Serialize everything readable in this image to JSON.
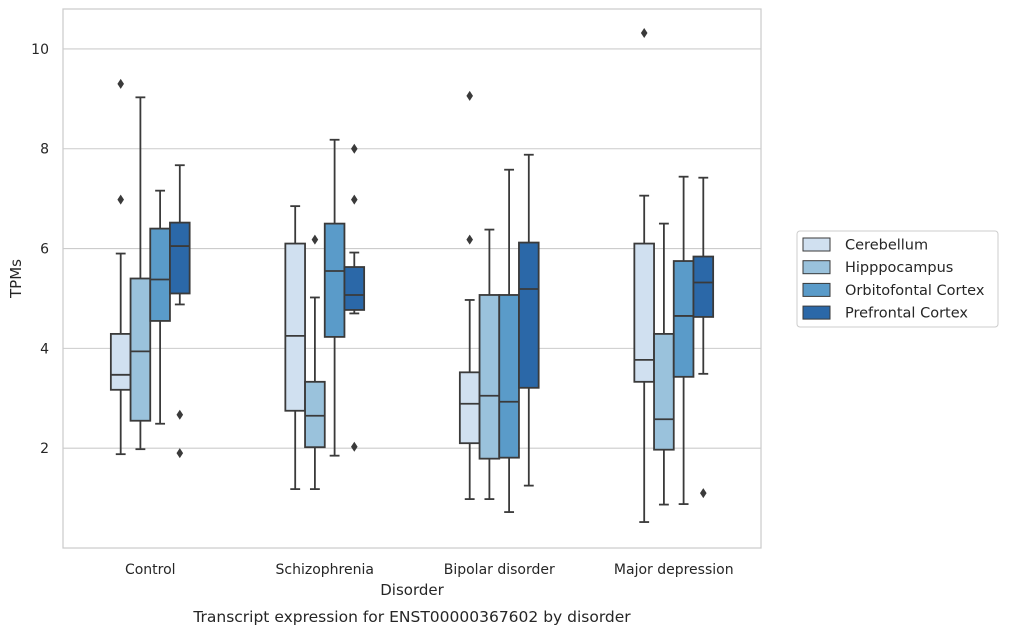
{
  "chart_data": {
    "type": "box",
    "caption": "Transcript expression for ENST00000367602 by disorder",
    "xlabel": "Disorder",
    "ylabel": "TPMs",
    "ylim": [
      0,
      10.8
    ],
    "yticks": [
      2,
      4,
      6,
      8,
      10
    ],
    "grid": "y",
    "legend_position": "right",
    "categories": [
      "Control",
      "Schizophrenia",
      "Bipolar disorder",
      "Major depression"
    ],
    "series": [
      {
        "name": "Cerebellum",
        "color": "#d0e0f0",
        "boxes": [
          {
            "whisker_low": 1.88,
            "q1": 3.17,
            "median": 3.47,
            "q3": 4.29,
            "whisker_high": 5.9,
            "outliers": [
              6.98,
              9.3
            ]
          },
          {
            "whisker_low": 1.18,
            "q1": 2.75,
            "median": 4.25,
            "q3": 6.1,
            "whisker_high": 6.85,
            "outliers": []
          },
          {
            "whisker_low": 0.98,
            "q1": 2.1,
            "median": 2.89,
            "q3": 3.52,
            "whisker_high": 4.97,
            "outliers": [
              6.18,
              9.06
            ]
          },
          {
            "whisker_low": 0.52,
            "q1": 3.33,
            "median": 3.77,
            "q3": 6.1,
            "whisker_high": 7.06,
            "outliers": [
              10.32
            ]
          }
        ]
      },
      {
        "name": "Hipppocampus",
        "color": "#9ac2dc",
        "boxes": [
          {
            "whisker_low": 1.98,
            "q1": 2.55,
            "median": 3.94,
            "q3": 5.4,
            "whisker_high": 9.03,
            "outliers": []
          },
          {
            "whisker_low": 1.18,
            "q1": 2.02,
            "median": 2.65,
            "q3": 3.33,
            "whisker_high": 5.02,
            "outliers": [
              6.18
            ]
          },
          {
            "whisker_low": 0.98,
            "q1": 1.79,
            "median": 3.05,
            "q3": 5.07,
            "whisker_high": 6.38,
            "outliers": []
          },
          {
            "whisker_low": 0.87,
            "q1": 1.97,
            "median": 2.58,
            "q3": 4.29,
            "whisker_high": 6.5,
            "outliers": []
          }
        ]
      },
      {
        "name": "Orbitofontal Cortex",
        "color": "#5a9bc9",
        "boxes": [
          {
            "whisker_low": 2.49,
            "q1": 4.55,
            "median": 5.38,
            "q3": 6.4,
            "whisker_high": 7.16,
            "outliers": []
          },
          {
            "whisker_low": 1.85,
            "q1": 4.23,
            "median": 5.55,
            "q3": 6.5,
            "whisker_high": 8.18,
            "outliers": []
          },
          {
            "whisker_low": 0.72,
            "q1": 1.81,
            "median": 2.93,
            "q3": 5.07,
            "whisker_high": 7.58,
            "outliers": []
          },
          {
            "whisker_low": 0.88,
            "q1": 3.43,
            "median": 4.65,
            "q3": 5.75,
            "whisker_high": 7.44,
            "outliers": []
          }
        ]
      },
      {
        "name": "Prefrontal Cortex",
        "color": "#2b68a8",
        "boxes": [
          {
            "whisker_low": 4.88,
            "q1": 5.1,
            "median": 6.05,
            "q3": 6.52,
            "whisker_high": 7.67,
            "outliers": [
              1.9,
              2.67
            ]
          },
          {
            "whisker_low": 4.7,
            "q1": 4.77,
            "median": 5.07,
            "q3": 5.63,
            "whisker_high": 5.92,
            "outliers": [
              2.03,
              6.98,
              8.0
            ]
          },
          {
            "whisker_low": 1.25,
            "q1": 3.21,
            "median": 5.19,
            "q3": 6.12,
            "whisker_high": 7.88,
            "outliers": []
          },
          {
            "whisker_low": 3.49,
            "q1": 4.63,
            "median": 5.32,
            "q3": 5.84,
            "whisker_high": 7.42,
            "outliers": [
              1.1
            ]
          }
        ]
      }
    ]
  }
}
